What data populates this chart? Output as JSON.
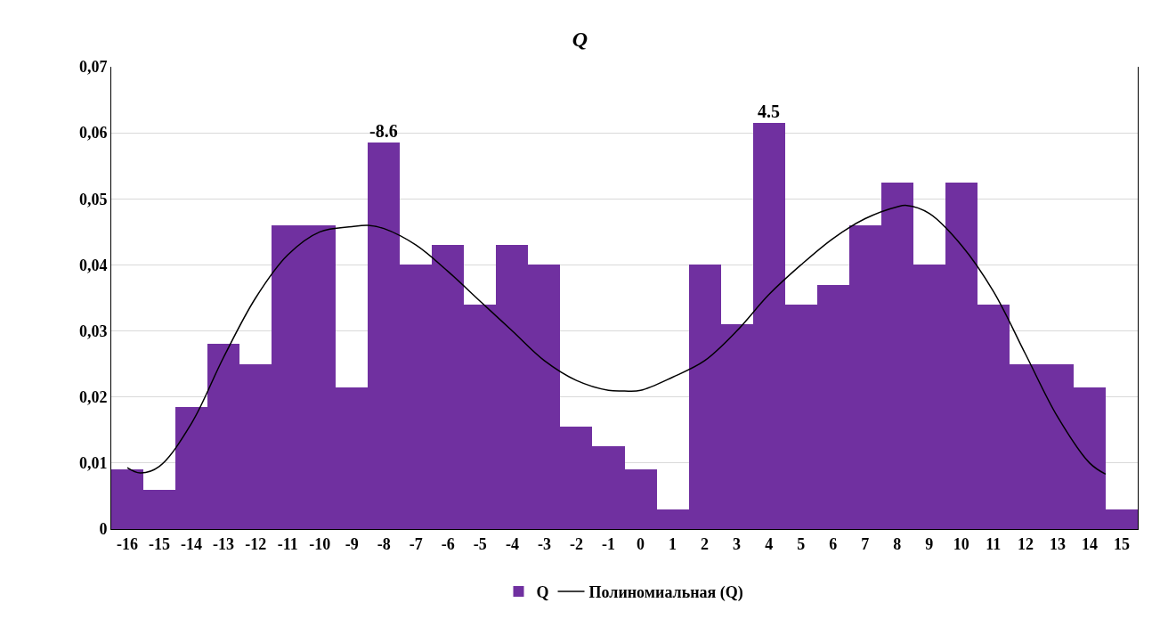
{
  "chart_data": {
    "type": "bar",
    "title": "Q",
    "x": [
      -16,
      -15,
      -14,
      -13,
      -12,
      -11,
      -10,
      -9,
      -8,
      -7,
      -6,
      -5,
      -4,
      -3,
      -2,
      -1,
      0,
      1,
      2,
      3,
      4,
      5,
      6,
      7,
      8,
      9,
      10,
      11,
      12,
      13,
      14,
      15
    ],
    "series": [
      {
        "name": "Q",
        "color": "#7030a0",
        "values": [
          0.009,
          0.006,
          0.0185,
          0.028,
          0.025,
          0.046,
          0.046,
          0.0215,
          0.0585,
          0.04,
          0.043,
          0.034,
          0.043,
          0.04,
          0.0155,
          0.0125,
          0.009,
          0.003,
          0.04,
          0.031,
          0.0615,
          0.034,
          0.037,
          0.046,
          0.0525,
          0.04,
          0.0525,
          0.034,
          0.025,
          0.025,
          0.0215,
          0.003
        ]
      },
      {
        "name": "Полиномиальная (Q)",
        "type": "line",
        "color": "#000000",
        "x": [
          -16,
          -15.6,
          -15,
          -14,
          -13,
          -12,
          -11,
          -10,
          -9,
          -8.5,
          -8,
          -7,
          -6,
          -5,
          -4,
          -3,
          -2,
          -1,
          -0.5,
          0,
          1,
          2,
          3,
          4,
          5,
          6,
          7,
          8,
          8.3,
          9,
          10,
          11,
          12,
          13,
          14,
          14.5
        ],
        "values": [
          0.0093,
          0.0085,
          0.0095,
          0.016,
          0.026,
          0.035,
          0.0415,
          0.045,
          0.0458,
          0.046,
          0.0455,
          0.043,
          0.039,
          0.0345,
          0.03,
          0.0255,
          0.0225,
          0.021,
          0.0209,
          0.021,
          0.023,
          0.0255,
          0.03,
          0.0355,
          0.04,
          0.044,
          0.047,
          0.0488,
          0.049,
          0.0478,
          0.043,
          0.036,
          0.0265,
          0.017,
          0.01,
          0.0083
        ]
      }
    ],
    "annotations": [
      {
        "text": "-8.6",
        "x": -8,
        "y": 0.0585
      },
      {
        "text": "4.5",
        "x": 4,
        "y": 0.0615
      }
    ],
    "xlim": [
      -16.5,
      15.5
    ],
    "xticks": [
      -16,
      -15,
      -14,
      -13,
      -12,
      -11,
      -10,
      -9,
      -8,
      -7,
      -6,
      -5,
      -4,
      -3,
      -2,
      -1,
      0,
      1,
      2,
      3,
      4,
      5,
      6,
      7,
      8,
      9,
      10,
      11,
      12,
      13,
      14,
      15
    ],
    "ylim": [
      0,
      0.07
    ],
    "yticks": [
      0,
      {
        "value": 0.01,
        "label": "0,01"
      },
      {
        "value": 0.02,
        "label": "0,02"
      },
      {
        "value": 0.03,
        "label": "0,03"
      },
      {
        "value": 0.04,
        "label": "0,04"
      },
      {
        "value": 0.05,
        "label": "0,05"
      },
      {
        "value": 0.06,
        "label": "0,06"
      },
      {
        "value": 0.07,
        "label": "0,07"
      }
    ],
    "grid": "y",
    "legend": "bottom",
    "marker": "none",
    "line_style": "solid"
  }
}
